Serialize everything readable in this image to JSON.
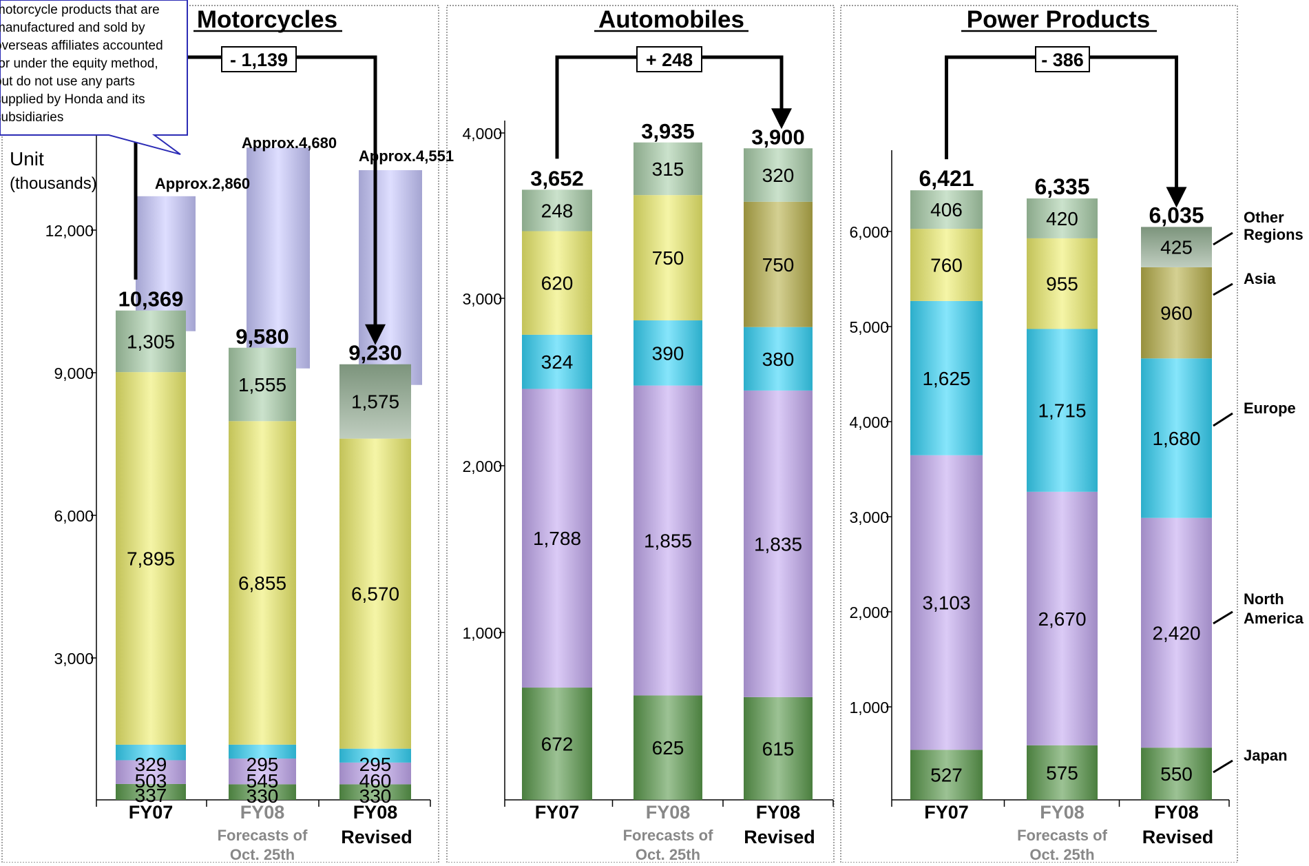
{
  "colors": {
    "japan": "#5a9a4c",
    "north_america": "#c3a9f0",
    "europe": "#36d4f8",
    "asia": "#eeee6c",
    "other": "#a9ceaa",
    "asia_dark": "#b8b04a",
    "other_dark": "#8aa48a",
    "overseas": "#c8c8ff"
  },
  "legend": {
    "other": "Other Regions",
    "asia": "Asia",
    "europe": "Europe",
    "north_america": "North America",
    "japan": "Japan"
  },
  "callout": {
    "lines": [
      "motorcycle products that are",
      "manufactured and sold by",
      "overseas affiliates accounted",
      "for under the equity method,",
      "but do not use any parts",
      "supplied by Honda and its",
      "subsidiaries"
    ]
  },
  "chart_data": [
    {
      "type": "bar",
      "title": "Motorcycles",
      "ylabel": "Unit (thousands)",
      "yticks": [
        "3,000",
        "6,000",
        "9,000",
        "12,000"
      ],
      "ylim": [
        0,
        14000
      ],
      "categories": [
        "FY07",
        "FY08",
        "FY08"
      ],
      "category_sublabels": [
        "",
        "Forecasts of Oct. 25th",
        "Revised"
      ],
      "series": [
        {
          "name": "Japan",
          "values": [
            337,
            330,
            330
          ]
        },
        {
          "name": "North America",
          "values": [
            503,
            545,
            460
          ]
        },
        {
          "name": "Europe",
          "values": [
            329,
            295,
            295
          ]
        },
        {
          "name": "Asia",
          "values": [
            7895,
            6855,
            6570
          ]
        },
        {
          "name": "Other Regions",
          "values": [
            1305,
            1555,
            1575
          ]
        }
      ],
      "totals": [
        "10,369",
        "9,580",
        "9,230"
      ],
      "overseas_affiliates": {
        "values": [
          2860,
          4680,
          4551
        ],
        "labels": [
          "Approx.2,860",
          "Approx.4,680",
          "Approx.4,551"
        ]
      },
      "change_label": "- 1,139"
    },
    {
      "type": "bar",
      "title": "Automobiles",
      "yticks": [
        "1,000",
        "2,000",
        "3,000",
        "4,000"
      ],
      "ylim": [
        0,
        4500
      ],
      "categories": [
        "FY07",
        "FY08",
        "FY08"
      ],
      "category_sublabels": [
        "",
        "Forecasts of Oct. 25th",
        "Revised"
      ],
      "series": [
        {
          "name": "Japan",
          "values": [
            672,
            625,
            615
          ]
        },
        {
          "name": "North America",
          "values": [
            1788,
            1855,
            1835
          ]
        },
        {
          "name": "Europe",
          "values": [
            324,
            390,
            380
          ]
        },
        {
          "name": "Asia",
          "values": [
            620,
            750,
            750
          ]
        },
        {
          "name": "Other Regions",
          "values": [
            248,
            315,
            320
          ]
        }
      ],
      "totals": [
        "3,652",
        "3,935",
        "3,900"
      ],
      "change_label": "+ 248"
    },
    {
      "type": "bar",
      "title": "Power Products",
      "yticks": [
        "1,000",
        "2,000",
        "3,000",
        "4,000",
        "5,000",
        "6,000"
      ],
      "ylim": [
        0,
        7000
      ],
      "categories": [
        "FY07",
        "FY08",
        "FY08"
      ],
      "category_sublabels": [
        "",
        "Forecasts of Oct. 25th",
        "Revised"
      ],
      "series": [
        {
          "name": "Japan",
          "values": [
            527,
            575,
            550
          ]
        },
        {
          "name": "North America",
          "values": [
            3103,
            2670,
            2420
          ]
        },
        {
          "name": "Europe",
          "values": [
            1625,
            1715,
            1680
          ]
        },
        {
          "name": "Asia",
          "values": [
            760,
            955,
            960
          ]
        },
        {
          "name": "Other Regions",
          "values": [
            406,
            420,
            425
          ]
        }
      ],
      "totals": [
        "6,421",
        "6,335",
        "6,035"
      ],
      "change_label": "- 386"
    }
  ]
}
